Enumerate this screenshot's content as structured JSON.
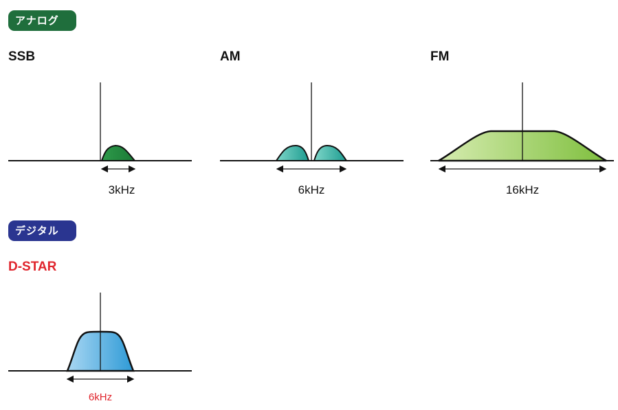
{
  "sections": {
    "analog_label": "アナログ",
    "digital_label": "デジタル"
  },
  "modes": {
    "ssb": {
      "title": "SSB",
      "bandwidth": "3kHz"
    },
    "am": {
      "title": "AM",
      "bandwidth": "6kHz"
    },
    "fm": {
      "title": "FM",
      "bandwidth": "16kHz"
    },
    "dstar": {
      "title": "D-STAR",
      "bandwidth": "6kHz"
    }
  },
  "colors": {
    "analog_badge": "#1f6e3c",
    "digital_badge": "#2a3590",
    "dstar_accent": "#e0242c",
    "ssb_fill": "#2e9a4a",
    "am_fill": "#2fb3a6",
    "fm_fill": "#a8d46a",
    "dstar_fill": "#5bb2e4"
  }
}
